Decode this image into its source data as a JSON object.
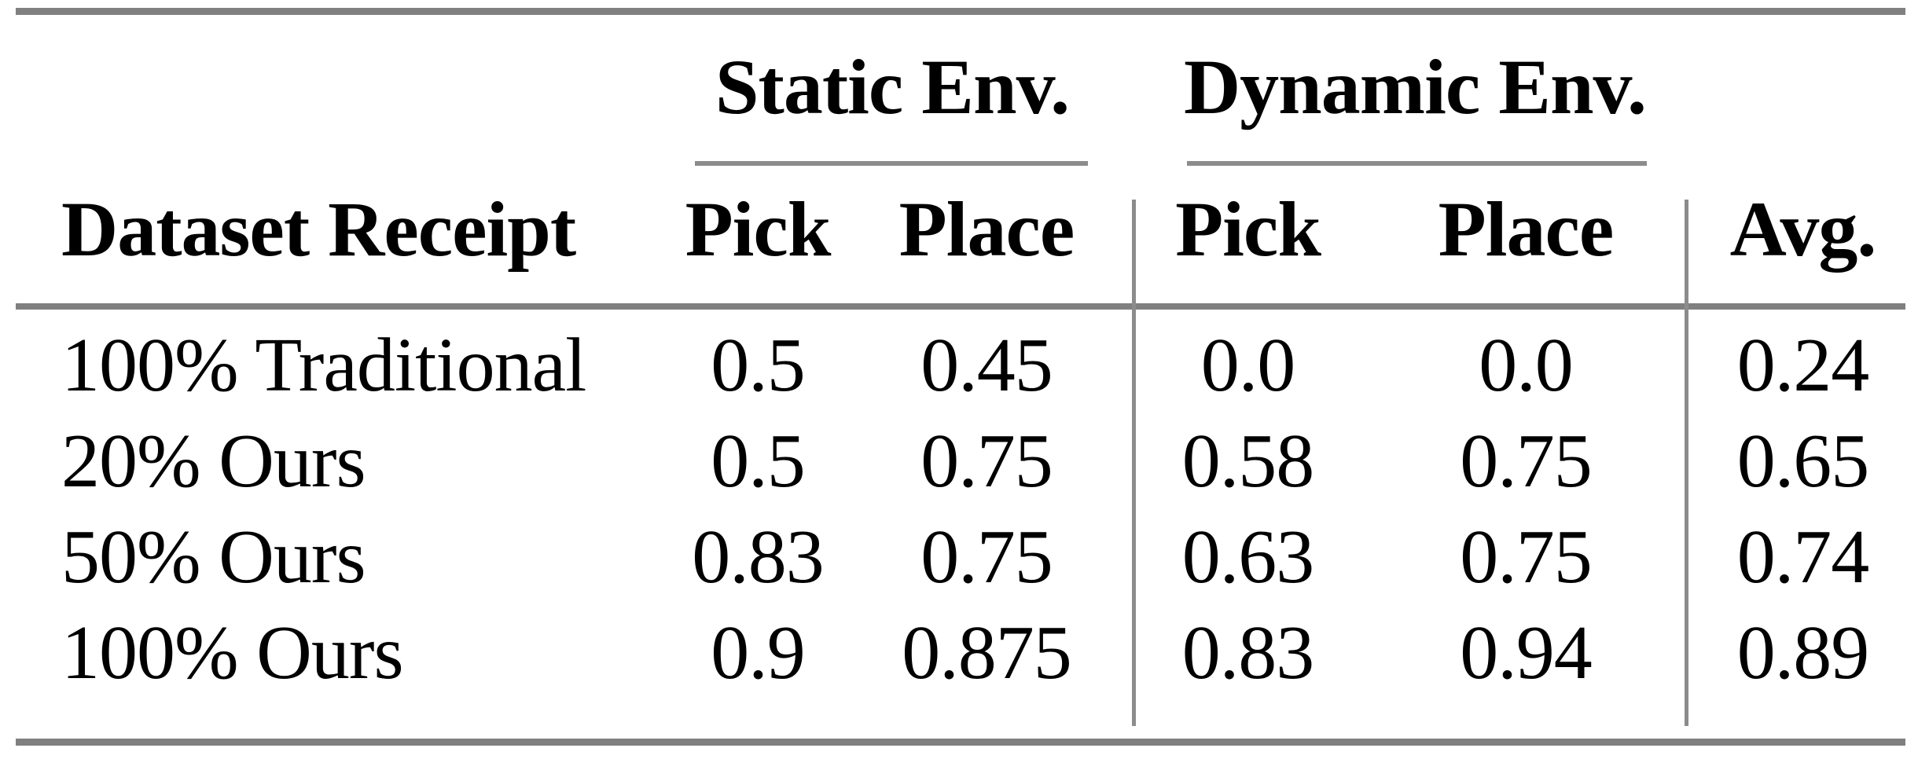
{
  "table": {
    "group_headers": {
      "static": "Static Env.",
      "dynamic": "Dynamic Env."
    },
    "column_headers": {
      "dataset": "Dataset Receipt",
      "static_pick": "Pick",
      "static_place": "Place",
      "dynamic_pick": "Pick",
      "dynamic_place": "Place",
      "avg": "Avg."
    },
    "rows": [
      {
        "label": "100% Traditional",
        "static_pick": "0.5",
        "static_place": "0.45",
        "dynamic_pick": "0.0",
        "dynamic_place": "0.0",
        "avg": "0.24"
      },
      {
        "label": "20% Ours",
        "static_pick": "0.5",
        "static_place": "0.75",
        "dynamic_pick": "0.58",
        "dynamic_place": "0.75",
        "avg": "0.65"
      },
      {
        "label": "50% Ours",
        "static_pick": "0.83",
        "static_place": "0.75",
        "dynamic_pick": "0.63",
        "dynamic_place": "0.75",
        "avg": "0.74"
      },
      {
        "label": "100% Ours",
        "static_pick": "0.9",
        "static_place": "0.875",
        "dynamic_pick": "0.83",
        "dynamic_place": "0.94",
        "avg": "0.89"
      }
    ],
    "colors": {
      "rule": "#808080",
      "light_rule": "#8c8c8c",
      "text": "#000000",
      "background": "#ffffff"
    }
  }
}
